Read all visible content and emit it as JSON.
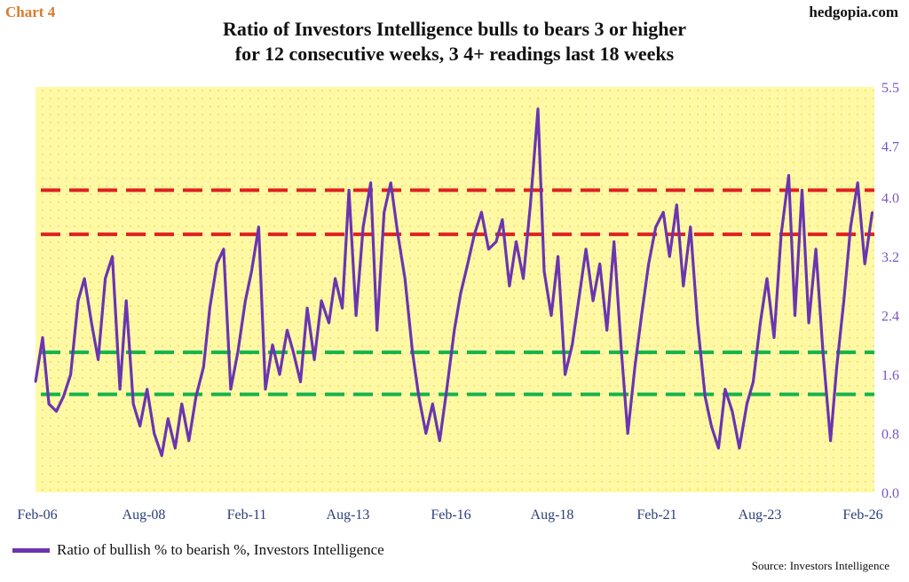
{
  "header": {
    "chart_tag": "Chart 4",
    "brand": "hedgopia.com"
  },
  "footer": {
    "source": "Source: Investors Intelligence"
  },
  "colors": {
    "series": "#6a35b1",
    "red_reference": "#e02020",
    "green_reference": "#13b34b",
    "plot_background": "#fff9a6",
    "plot_dots": "#f1e36a",
    "y_tick_text": "#7a55c0",
    "x_tick_text": "#2a3e7a"
  },
  "chart_data": {
    "type": "line",
    "title": "Ratio of Investors Intelligence bulls to bears 3 or higher",
    "subtitle": "for 12 consecutive weeks, 3 4+ readings last 18 weeks",
    "xlabel": "",
    "ylabel": "",
    "ylim": [
      0.0,
      5.5
    ],
    "y_ticks": [
      "0.0",
      "0.8",
      "1.6",
      "2.4",
      "3.2",
      "4.0",
      "4.7",
      "5.5"
    ],
    "x_ticks": [
      "Feb-06",
      "Aug-08",
      "Feb-11",
      "Aug-13",
      "Feb-16",
      "Aug-18",
      "Feb-21",
      "Aug-23",
      "Feb-26"
    ],
    "grid": false,
    "legend_position": "bottom-left",
    "reference_lines": [
      {
        "value": 4.1,
        "color": "red",
        "style": "dashed"
      },
      {
        "value": 3.5,
        "color": "red",
        "style": "dashed"
      },
      {
        "value": 1.9,
        "color": "green",
        "style": "dashed"
      },
      {
        "value": 1.33,
        "color": "green",
        "style": "dashed"
      }
    ],
    "series": [
      {
        "name": "Ratio of bullish % to bearish %, Investors Intelligence",
        "x": [
          2006.08,
          2006.25,
          2006.4,
          2006.58,
          2006.75,
          2006.92,
          2007.1,
          2007.25,
          2007.42,
          2007.58,
          2007.75,
          2007.92,
          2008.1,
          2008.25,
          2008.42,
          2008.58,
          2008.75,
          2008.92,
          2009.1,
          2009.25,
          2009.42,
          2009.58,
          2009.75,
          2009.92,
          2010.1,
          2010.25,
          2010.42,
          2010.58,
          2010.75,
          2010.92,
          2011.1,
          2011.25,
          2011.42,
          2011.58,
          2011.75,
          2011.92,
          2012.1,
          2012.25,
          2012.42,
          2012.58,
          2012.75,
          2012.92,
          2013.1,
          2013.25,
          2013.42,
          2013.58,
          2013.75,
          2013.92,
          2014.1,
          2014.25,
          2014.42,
          2014.58,
          2014.75,
          2014.92,
          2015.1,
          2015.25,
          2015.42,
          2015.58,
          2015.75,
          2015.92,
          2016.1,
          2016.25,
          2016.42,
          2016.58,
          2016.75,
          2016.92,
          2017.1,
          2017.25,
          2017.42,
          2017.58,
          2017.75,
          2017.92,
          2018.1,
          2018.25,
          2018.42,
          2018.58,
          2018.75,
          2018.92,
          2019.1,
          2019.25,
          2019.42,
          2019.58,
          2019.75,
          2019.92,
          2020.1,
          2020.25,
          2020.42,
          2020.58,
          2020.75,
          2020.92,
          2021.1,
          2021.25,
          2021.42,
          2021.58,
          2021.75,
          2021.92,
          2022.1,
          2022.25,
          2022.42,
          2022.58,
          2022.75,
          2022.92,
          2023.1,
          2023.25,
          2023.42,
          2023.58,
          2023.75,
          2023.92,
          2024.1,
          2024.25,
          2024.42,
          2024.58,
          2024.75,
          2024.92,
          2025.1,
          2025.25,
          2025.42,
          2025.58,
          2025.75,
          2025.92,
          2026.1
        ],
        "values": [
          1.5,
          2.1,
          1.2,
          1.1,
          1.3,
          1.6,
          2.6,
          2.9,
          2.3,
          1.8,
          2.9,
          3.2,
          1.4,
          2.6,
          1.2,
          0.9,
          1.4,
          0.8,
          0.5,
          1.0,
          0.6,
          1.2,
          0.7,
          1.3,
          1.7,
          2.5,
          3.1,
          3.3,
          1.4,
          1.9,
          2.6,
          3.0,
          3.6,
          1.4,
          2.0,
          1.6,
          2.2,
          1.9,
          1.5,
          2.5,
          1.8,
          2.6,
          2.3,
          2.9,
          2.5,
          4.1,
          2.4,
          3.6,
          4.2,
          2.2,
          3.8,
          4.2,
          3.5,
          2.9,
          1.9,
          1.3,
          0.8,
          1.2,
          0.7,
          1.4,
          2.2,
          2.7,
          3.1,
          3.5,
          3.8,
          3.3,
          3.4,
          3.7,
          2.8,
          3.4,
          2.9,
          3.9,
          5.2,
          3.0,
          2.4,
          3.2,
          1.6,
          2.0,
          2.7,
          3.3,
          2.6,
          3.1,
          2.2,
          3.4,
          1.9,
          0.8,
          1.7,
          2.4,
          3.1,
          3.6,
          3.8,
          3.2,
          3.9,
          2.8,
          3.6,
          2.3,
          1.3,
          0.9,
          0.6,
          1.4,
          1.1,
          0.6,
          1.2,
          1.5,
          2.3,
          2.9,
          2.1,
          3.5,
          4.3,
          2.4,
          4.1,
          2.3,
          3.3,
          1.9,
          0.7,
          1.7,
          2.6,
          3.6,
          4.2,
          3.1,
          3.8
        ]
      }
    ]
  }
}
